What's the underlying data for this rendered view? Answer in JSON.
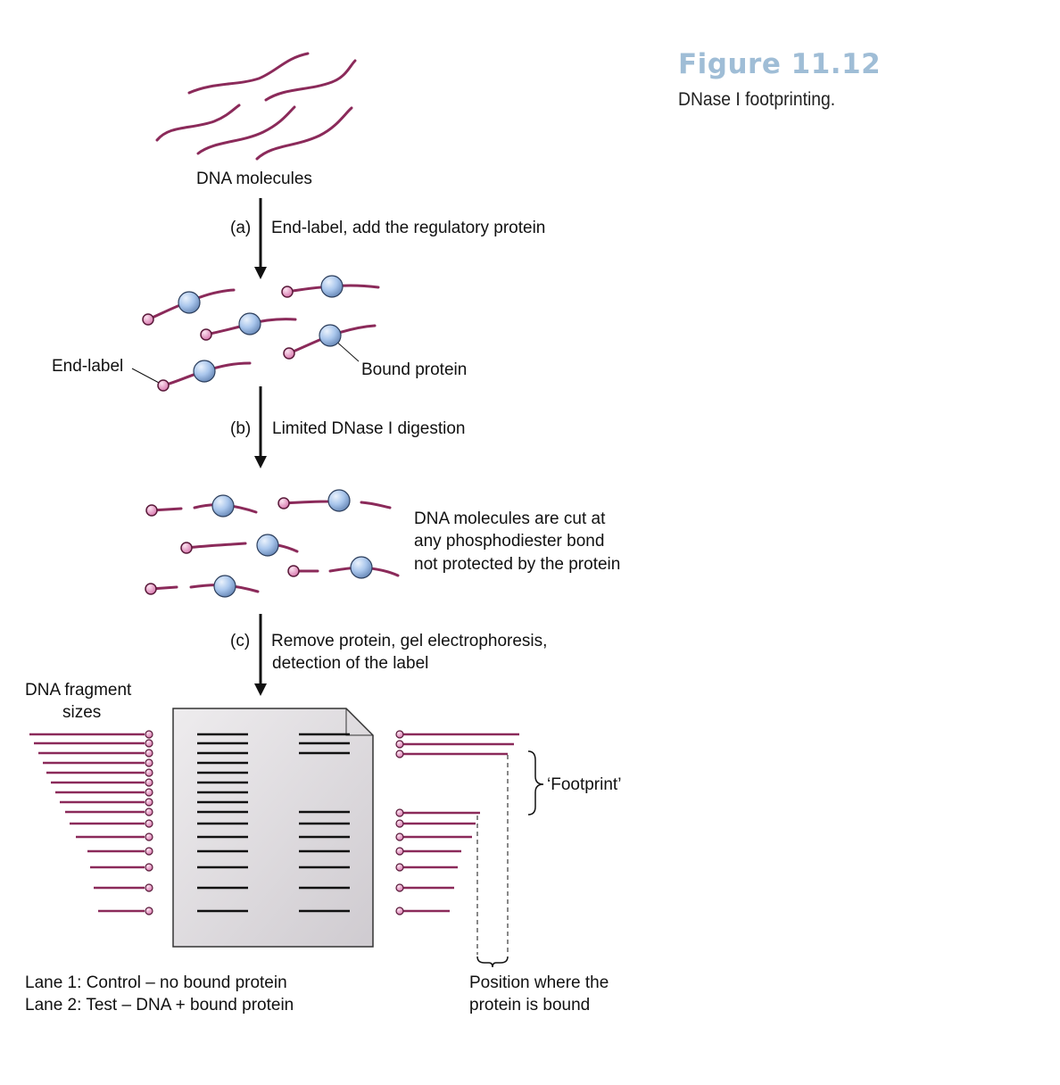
{
  "figure": {
    "number": "Figure 11.12",
    "caption": "DNase I footprinting."
  },
  "labels": {
    "dna_molecules": "DNA molecules",
    "step_a_tag": "(a)",
    "step_a_text": "End-label, add the regulatory protein",
    "end_label": "End-label",
    "bound_protein": "Bound protein",
    "step_b_tag": "(b)",
    "step_b_text": "Limited DNase I digestion",
    "cut_line1": "DNA molecules are cut at",
    "cut_line2": "any phosphodiester bond",
    "cut_line3": "not protected by the protein",
    "step_c_tag": "(c)",
    "step_c_line1": "Remove protein, gel electrophoresis,",
    "step_c_line2": "detection of the label",
    "fragment_sizes_line1": "DNA fragment",
    "fragment_sizes_line2": "sizes",
    "footprint": "‘Footprint’",
    "lane1": "Lane 1: Control – no bound protein",
    "lane2": "Lane 2: Test – DNA + bound protein",
    "position_line1": "Position where the",
    "position_line2": "protein is bound"
  },
  "colors": {
    "dna_strand": "#8b2a5a",
    "end_label_fill": "#e79ac6",
    "protein_fill": "#a9c6ec",
    "gel_fill": "#dcd8dc",
    "figure_number": "#9fbdd6"
  }
}
